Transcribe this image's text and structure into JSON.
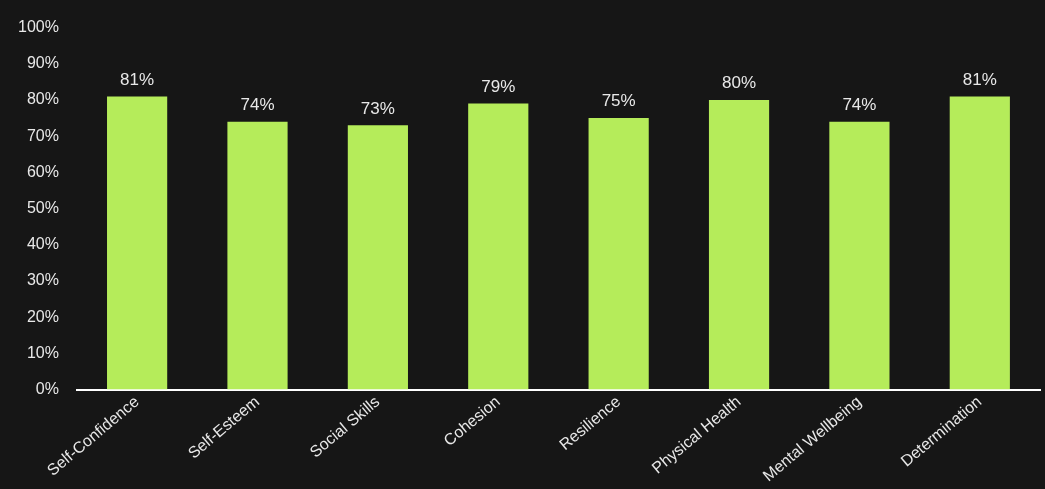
{
  "chart_data": {
    "type": "bar",
    "categories": [
      "Self-Confidence",
      "Self-Esteem",
      "Social Skills",
      "Cohesion",
      "Resilience",
      "Physical Health",
      "Mental Wellbeing",
      "Determination"
    ],
    "values": [
      81,
      74,
      73,
      79,
      75,
      80,
      74,
      81
    ],
    "value_labels": [
      "81%",
      "74%",
      "73%",
      "79%",
      "75%",
      "80%",
      "74%",
      "81%"
    ],
    "color": "#b5ec5a",
    "ylim": [
      0,
      100
    ],
    "yticks": [
      {
        "value": 0,
        "label": "0%"
      },
      {
        "value": 10,
        "label": "10%"
      },
      {
        "value": 20,
        "label": "20%"
      },
      {
        "value": 30,
        "label": "30%"
      },
      {
        "value": 40,
        "label": "40%"
      },
      {
        "value": 50,
        "label": "50%"
      },
      {
        "value": 60,
        "label": "60%"
      },
      {
        "value": 70,
        "label": "70%"
      },
      {
        "value": 80,
        "label": "80%"
      },
      {
        "value": 90,
        "label": "90%"
      },
      {
        "value": 100,
        "label": "100%"
      }
    ]
  }
}
